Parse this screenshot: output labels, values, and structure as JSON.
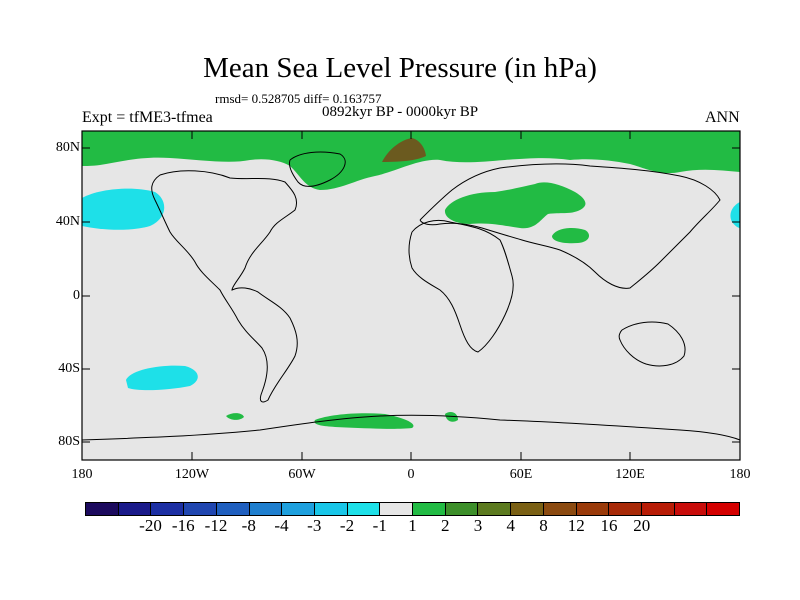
{
  "title": "Mean Sea Level Pressure (in hPa)",
  "stats": "rmsd= 0.528705 diff= 0.163757",
  "expt": "Expt = tfME3-tfmea",
  "period": "0892kyr BP - 0000kyr BP",
  "season": "ANN",
  "y_ticks": [
    "80N",
    "40N",
    "0",
    "40S",
    "80S"
  ],
  "x_ticks": [
    "180",
    "120W",
    "60W",
    "0",
    "60E",
    "120E",
    "180"
  ],
  "colorbar": {
    "colors": [
      "#1c0a5e",
      "#1a1a8a",
      "#1c2fa3",
      "#2046b0",
      "#1f5fbf",
      "#1f7fcf",
      "#1ea0de",
      "#19c6e8",
      "#1ee0e8",
      "#e6e6e6",
      "#22bb44",
      "#3d8f2a",
      "#5c7a1f",
      "#7a6014",
      "#8b4a10",
      "#9a3a0a",
      "#a82a08",
      "#b81c06",
      "#c80c0a",
      "#d40000"
    ],
    "labels": [
      "-20",
      "-16",
      "-12",
      "-8",
      "-4",
      "-3",
      "-2",
      "-1",
      "1",
      "2",
      "3",
      "4",
      "8",
      "12",
      "16",
      "20"
    ]
  },
  "colors": {
    "positive_anomaly": "#22bb44",
    "strong_positive": "#6b5a1f",
    "negative_anomaly": "#1ee0e8",
    "background_field": "#e6e6e6"
  }
}
